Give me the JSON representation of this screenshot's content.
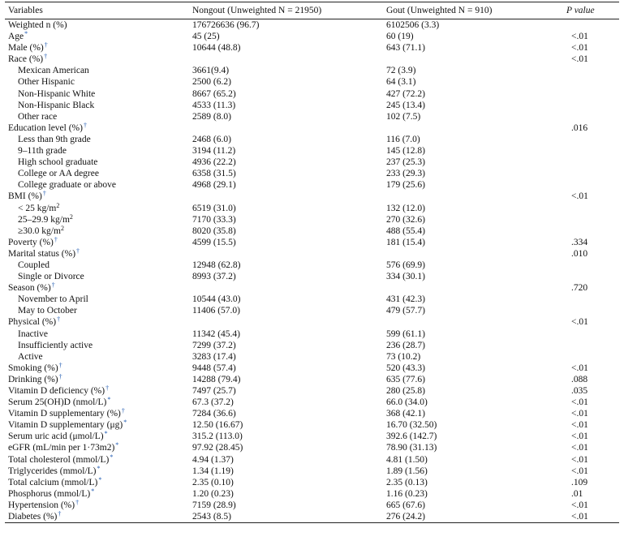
{
  "header": {
    "variables": "Variables",
    "nongout": "Nongout (Unweighted N = 21950)",
    "gout": "Gout (Unweighted N = 910)",
    "p": "P value"
  },
  "rows": [
    {
      "label": "Weighted n (%)",
      "mark": "",
      "ng": "176726636 (96.7)",
      "g": "6102506 (3.3)",
      "p": "",
      "sub": false
    },
    {
      "label": "Age",
      "mark": "*",
      "ng": "45 (25)",
      "g": "60 (19)",
      "p": "<.01",
      "sub": false
    },
    {
      "label": "Male (%)",
      "mark": "†",
      "ng": "10644 (48.8)",
      "g": "643 (71.1)",
      "p": "<.01",
      "sub": false
    },
    {
      "label": "Race (%)",
      "mark": "†",
      "ng": "",
      "g": "",
      "p": "<.01",
      "sub": false
    },
    {
      "label": "Mexican American",
      "mark": "",
      "ng": "3661(9.4)",
      "g": "72 (3.9)",
      "p": "",
      "sub": true
    },
    {
      "label": "Other Hispanic",
      "mark": "",
      "ng": "2500 (6.2)",
      "g": "64 (3.1)",
      "p": "",
      "sub": true
    },
    {
      "label": "Non-Hispanic White",
      "mark": "",
      "ng": "8667 (65.2)",
      "g": "427 (72.2)",
      "p": "",
      "sub": true
    },
    {
      "label": "Non-Hispanic Black",
      "mark": "",
      "ng": "4533 (11.3)",
      "g": "245 (13.4)",
      "p": "",
      "sub": true
    },
    {
      "label": "Other race",
      "mark": "",
      "ng": "2589 (8.0)",
      "g": "102 (7.5)",
      "p": "",
      "sub": true
    },
    {
      "label": "Education level (%)",
      "mark": "†",
      "ng": "",
      "g": "",
      "p": ".016",
      "sub": false
    },
    {
      "label": "Less than 9th grade",
      "mark": "",
      "ng": "2468 (6.0)",
      "g": "116 (7.0)",
      "p": "",
      "sub": true
    },
    {
      "label": "9–11th grade",
      "mark": "",
      "ng": "3194 (11.2)",
      "g": "145 (12.8)",
      "p": "",
      "sub": true
    },
    {
      "label": "High school graduate",
      "mark": "",
      "ng": "4936 (22.2)",
      "g": "237 (25.3)",
      "p": "",
      "sub": true
    },
    {
      "label": "College or AA degree",
      "mark": "",
      "ng": "6358 (31.5)",
      "g": "233 (29.3)",
      "p": "",
      "sub": true
    },
    {
      "label": "College graduate or above",
      "mark": "",
      "ng": "4968 (29.1)",
      "g": "179 (25.6)",
      "p": "",
      "sub": true
    },
    {
      "label": "BMI (%)",
      "mark": "†",
      "ng": "",
      "g": "",
      "p": "<.01",
      "sub": false
    },
    {
      "label": "< 25 kg/m",
      "mark": "",
      "sq": "2",
      "ng": "6519 (31.0)",
      "g": "132 (12.0)",
      "p": "",
      "sub": true
    },
    {
      "label": "25–29.9 kg/m",
      "mark": "",
      "sq": "2",
      "ng": "7170 (33.3)",
      "g": "270 (32.6)",
      "p": "",
      "sub": true
    },
    {
      "label": "≥30.0 kg/m",
      "mark": "",
      "sq": "2",
      "ng": "8020 (35.8)",
      "g": "488 (55.4)",
      "p": "",
      "sub": true
    },
    {
      "label": "Poverty (%)",
      "mark": "†",
      "ng": "4599 (15.5)",
      "g": "181 (15.4)",
      "p": ".334",
      "sub": false
    },
    {
      "label": "Marital status (%)",
      "mark": "†",
      "ng": "",
      "g": "",
      "p": ".010",
      "sub": false
    },
    {
      "label": "Coupled",
      "mark": "",
      "ng": "12948 (62.8)",
      "g": "576 (69.9)",
      "p": "",
      "sub": true
    },
    {
      "label": "Single or Divorce",
      "mark": "",
      "ng": "8993 (37.2)",
      "g": "334 (30.1)",
      "p": "",
      "sub": true
    },
    {
      "label": "Season (%)",
      "mark": "†",
      "ng": "",
      "g": "",
      "p": ".720",
      "sub": false
    },
    {
      "label": "November to April",
      "mark": "",
      "ng": "10544 (43.0)",
      "g": "431 (42.3)",
      "p": "",
      "sub": true
    },
    {
      "label": "May to October",
      "mark": "",
      "ng": "11406 (57.0)",
      "g": "479 (57.7)",
      "p": "",
      "sub": true
    },
    {
      "label": "Physical (%)",
      "mark": "†",
      "ng": "",
      "g": "",
      "p": "<.01",
      "sub": false
    },
    {
      "label": "Inactive",
      "mark": "",
      "ng": "11342 (45.4)",
      "g": "599 (61.1)",
      "p": "",
      "sub": true
    },
    {
      "label": "Insufficiently active",
      "mark": "",
      "ng": "7299 (37.2)",
      "g": "236 (28.7)",
      "p": "",
      "sub": true
    },
    {
      "label": "Active",
      "mark": "",
      "ng": "3283 (17.4)",
      "g": "73 (10.2)",
      "p": "",
      "sub": true
    },
    {
      "label": "Smoking (%)",
      "mark": "†",
      "ng": "9448 (57.4)",
      "g": "520 (43.3)",
      "p": "<.01",
      "sub": false
    },
    {
      "label": "Drinking (%)",
      "mark": "†",
      "ng": "14288 (79.4)",
      "g": "635 (77.6)",
      "p": ".088",
      "sub": false
    },
    {
      "label": "Vitamin D deficiency (%)",
      "mark": "†",
      "ng": "7497 (25.7)",
      "g": "280 (25.8)",
      "p": ".035",
      "sub": false
    },
    {
      "label": "Serum 25(OH)D (nmol/L)",
      "mark": "*",
      "ng": "67.3 (37.2)",
      "g": "66.0 (34.0)",
      "p": "<.01",
      "sub": false
    },
    {
      "label": "Vitamin D supplementary (%)",
      "mark": "†",
      "ng": "7284 (36.6)",
      "g": "368 (42.1)",
      "p": "<.01",
      "sub": false
    },
    {
      "label": "Vitamin D supplementary (μg)",
      "mark": "*",
      "ng": "12.50 (16.67)",
      "g": "16.70 (32.50)",
      "p": "<.01",
      "sub": false
    },
    {
      "label": "Serum uric acid (μmol/L)",
      "mark": "*",
      "ng": "315.2 (113.0)",
      "g": "392.6 (142.7)",
      "p": "<.01",
      "sub": false
    },
    {
      "label": "eGFR (mL/min per 1·73m2)",
      "mark": "*",
      "ng": "97.92 (28.45)",
      "g": "78.90 (31.13)",
      "p": "<.01",
      "sub": false
    },
    {
      "label": "Total cholesterol (mmol/L)",
      "mark": "*",
      "ng": "4.94 (1.37)",
      "g": "4.81 (1.50)",
      "p": "<.01",
      "sub": false
    },
    {
      "label": "Triglycerides (mmol/L)",
      "mark": "*",
      "ng": "1.34 (1.19)",
      "g": "1.89 (1.56)",
      "p": "<.01",
      "sub": false
    },
    {
      "label": "Total calcium (mmol/L)",
      "mark": "*",
      "ng": "2.35 (0.10)",
      "g": "2.35 (0.13)",
      "p": ".109",
      "sub": false
    },
    {
      "label": "Phosphorus (mmol/L)",
      "mark": "*",
      "ng": "1.20 (0.23)",
      "g": "1.16 (0.23)",
      "p": ".01",
      "sub": false
    },
    {
      "label": "Hypertension (%)",
      "mark": "†",
      "ng": "7159 (28.9)",
      "g": "665 (67.6)",
      "p": "<.01",
      "sub": false
    },
    {
      "label": "Diabetes (%)",
      "mark": "†",
      "ng": "2543 (8.5)",
      "g": "276 (24.2)",
      "p": "<.01",
      "sub": false
    }
  ]
}
